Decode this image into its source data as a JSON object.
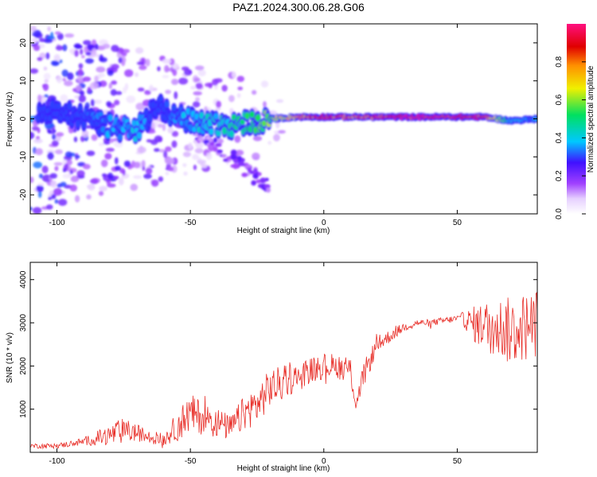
{
  "figure": {
    "title": "PAZ1.2024.300.06.28.G06"
  },
  "colors": {
    "trace": "#e8302a",
    "colormap": [
      "#ffffff",
      "#e6d0ff",
      "#a040ff",
      "#4010ff",
      "#00c8ff",
      "#00e060",
      "#f0f000",
      "#ff9000",
      "#e00000",
      "#ff1080"
    ]
  },
  "chart_data": [
    {
      "type": "heatmap",
      "xlabel": "Height of straight line (km)",
      "ylabel": "Frequency (Hz)",
      "xlim": [
        -110,
        80
      ],
      "ylim": [
        -25,
        25
      ],
      "xticks": [
        -100,
        -50,
        0,
        50
      ],
      "yticks": [
        -20,
        -10,
        0,
        10,
        20
      ],
      "colorbar": {
        "label": "Normalized spectral amplitude",
        "range": [
          0,
          1
        ],
        "ticks": [
          "0.0",
          "0.2",
          "0.4",
          "0.6",
          "0.8"
        ]
      },
      "ridge": {
        "x": [
          -100,
          -90,
          -80,
          -70,
          -62,
          -55,
          -45,
          -35,
          -28,
          -20,
          -10,
          0,
          10,
          20,
          30,
          40,
          50,
          60,
          70,
          80
        ],
        "y": [
          2.5,
          0,
          -2,
          -3,
          4,
          0,
          -1,
          -1.5,
          -1,
          0,
          0.5,
          0.5,
          0.5,
          0.5,
          0.5,
          0.5,
          0.5,
          0.5,
          -0.5,
          0
        ],
        "amplitude": [
          0.2,
          0.3,
          0.35,
          0.4,
          0.25,
          0.35,
          0.4,
          0.45,
          0.5,
          0.6,
          0.75,
          0.9,
          0.85,
          0.9,
          0.95,
          0.95,
          0.95,
          0.9,
          0.4,
          0.35
        ]
      }
    },
    {
      "type": "line",
      "xlabel": "Height of straight line (km)",
      "ylabel": "SNR (10 * v/v)",
      "xlim": [
        -110,
        80
      ],
      "ylim": [
        0,
        4400
      ],
      "xticks": [
        -100,
        -50,
        0,
        50
      ],
      "yticks": [
        1000,
        2000,
        3000,
        4000
      ],
      "series": [
        {
          "x": [
            -110,
            -100,
            -90,
            -80,
            -75,
            -70,
            -65,
            -60,
            -55,
            -50,
            -45,
            -40,
            -35,
            -30,
            -25,
            -20,
            -15,
            -10,
            -5,
            0,
            5,
            10,
            12,
            15,
            20,
            25,
            30,
            35,
            40,
            45,
            50,
            52,
            55,
            60,
            65,
            70,
            75,
            80
          ],
          "y": [
            150,
            150,
            250,
            400,
            500,
            450,
            350,
            300,
            600,
            900,
            800,
            700,
            550,
            900,
            1100,
            1500,
            1600,
            1750,
            1900,
            2000,
            2000,
            1900,
            1100,
            1800,
            2500,
            2700,
            2900,
            3000,
            3000,
            3050,
            3100,
            3100,
            3000,
            2900,
            2900,
            2800,
            2900,
            3000
          ],
          "noise": [
            60,
            60,
            90,
            250,
            300,
            200,
            150,
            150,
            350,
            450,
            400,
            350,
            300,
            400,
            450,
            450,
            400,
            300,
            300,
            300,
            300,
            300,
            150,
            300,
            200,
            150,
            100,
            80,
            80,
            80,
            80,
            150,
            350,
            600,
            700,
            800,
            800,
            800
          ]
        }
      ]
    }
  ]
}
